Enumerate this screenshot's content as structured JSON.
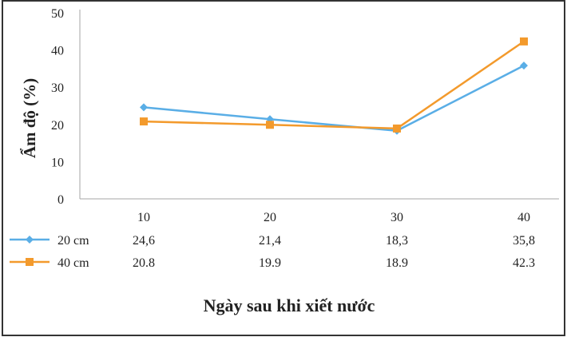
{
  "chart_data": {
    "type": "line",
    "title": "",
    "xlabel": "Ngày sau khi xiết nước",
    "ylabel": "Ẩm độ (%)",
    "x": [
      10,
      20,
      30,
      40
    ],
    "x_tick_labels": [
      "10",
      "20",
      "30",
      "40"
    ],
    "ylim": [
      0,
      50
    ],
    "y_ticks": [
      0,
      10,
      20,
      30,
      40,
      50
    ],
    "grid": false,
    "legend_position": "table-below",
    "series": [
      {
        "name": "20 cm",
        "values": [
          24.6,
          21.4,
          18.3,
          35.8
        ],
        "value_labels": [
          "24,6",
          "21,4",
          "18,3",
          "35,8"
        ],
        "color": "#5aaee6",
        "marker": "diamond"
      },
      {
        "name": "40 cm",
        "values": [
          20.8,
          19.9,
          18.9,
          42.3
        ],
        "value_labels": [
          "20.8",
          "19.9",
          "18.9",
          "42.3"
        ],
        "color": "#f39a2c",
        "marker": "square"
      }
    ],
    "colors": {
      "axis": "#a6a6a6",
      "text": "#222222",
      "frame": "#333333"
    }
  }
}
